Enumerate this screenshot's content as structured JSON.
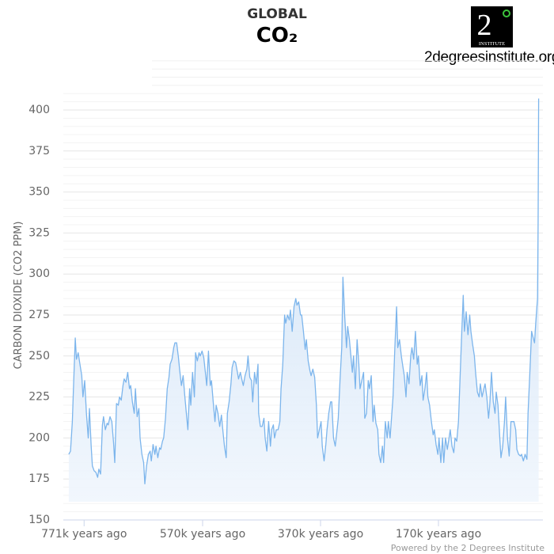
{
  "title": "GLOBAL",
  "subtitle": "CO₂",
  "logo": {
    "text": "2°",
    "caption": "INSTITUTE",
    "colors": {
      "background": "#000000",
      "ring": "#3cc43c"
    }
  },
  "site": "2degreesinstitute.org",
  "credits": "Powered by the 2 Degrees Institute",
  "chart_data": {
    "type": "area",
    "title": "GLOBAL CO₂",
    "xlabel": "",
    "ylabel": "CARBON DIOXIDE (CO2 PPM)",
    "x_unit": "thousand years ago",
    "xlim": [
      797,
      0
    ],
    "ylim": [
      150,
      410
    ],
    "y_ticks": [
      150,
      175,
      200,
      225,
      250,
      275,
      300,
      325,
      350,
      375,
      400
    ],
    "x_ticks": [
      {
        "value": 771,
        "label": "771k years ago"
      },
      {
        "value": 570,
        "label": "570k years ago"
      },
      {
        "value": 370,
        "label": "370k years ago"
      },
      {
        "value": 170,
        "label": "170k years ago"
      }
    ],
    "grid": true,
    "legend": "none",
    "colors": {
      "line": "#7cb5ec",
      "fill_top": "#c9def5",
      "fill_bottom": "#f0f6fd",
      "grid": "#e6e6e6"
    },
    "years_ago_k": [
      797,
      794,
      791,
      789,
      786,
      784,
      781,
      778,
      775,
      773,
      770,
      767,
      764,
      762,
      759,
      757,
      754,
      751,
      748,
      746,
      743,
      740,
      738,
      735,
      732,
      730,
      727,
      724,
      721,
      719,
      716,
      713,
      711,
      708,
      705,
      703,
      700,
      697,
      694,
      692,
      689,
      686,
      684,
      681,
      678,
      676,
      673,
      670,
      668,
      665,
      662,
      659,
      657,
      654,
      651,
      649,
      646,
      643,
      641,
      638,
      636,
      633,
      630,
      627,
      625,
      622,
      619,
      617,
      614,
      611,
      609,
      606,
      603,
      600,
      598,
      595,
      592,
      590,
      587,
      584,
      582,
      579,
      576,
      574,
      571,
      568,
      565,
      563,
      560,
      557,
      555,
      552,
      549,
      547,
      544,
      541,
      538,
      536,
      533,
      530,
      528,
      525,
      522,
      520,
      517,
      514,
      511,
      509,
      506,
      503,
      501,
      498,
      495,
      493,
      490,
      487,
      485,
      482,
      479,
      476,
      475,
      472,
      469,
      466,
      464,
      461,
      458,
      455,
      453,
      450,
      448,
      445,
      442,
      439,
      437,
      434,
      431,
      429,
      426,
      423,
      421,
      418,
      415,
      412,
      410,
      407,
      404,
      402,
      399,
      396,
      394,
      391,
      388,
      386,
      383,
      380,
      377,
      375,
      372,
      369,
      367,
      364,
      361,
      359,
      356,
      353,
      351,
      348,
      345,
      342,
      340,
      337,
      334,
      332,
      329,
      326,
      324,
      321,
      318,
      316,
      314,
      311,
      308,
      305,
      303,
      300,
      297,
      295,
      292,
      289,
      287,
      284,
      281,
      279,
      276,
      273,
      271,
      268,
      265,
      263,
      260,
      257,
      255,
      252,
      249,
      247,
      244,
      241,
      239,
      236,
      233,
      231,
      228,
      225,
      223,
      220,
      217,
      215,
      212,
      209,
      206,
      204,
      201,
      198,
      196,
      193,
      190,
      188,
      185,
      182,
      179,
      177,
      174,
      171,
      169,
      166,
      163,
      161,
      158,
      155,
      152,
      150,
      147,
      144,
      142,
      139,
      136,
      134,
      131,
      128,
      126,
      123,
      120,
      117,
      115,
      112,
      109,
      107,
      104,
      101,
      99,
      96,
      93,
      91,
      88,
      85,
      83,
      80,
      77,
      74,
      72,
      69,
      66,
      64,
      61,
      58,
      56,
      53,
      50,
      47,
      45,
      42,
      39,
      37,
      34,
      31,
      29,
      26,
      23,
      20,
      18,
      15,
      12,
      10,
      7,
      5,
      3,
      2,
      1,
      0
    ],
    "co2_ppm": [
      190,
      192,
      210,
      230,
      261,
      248,
      252,
      245,
      238,
      225,
      235,
      215,
      200,
      218,
      195,
      183,
      180,
      179,
      176,
      181,
      178,
      208,
      213,
      205,
      209,
      208,
      213,
      210,
      197,
      185,
      221,
      220,
      225,
      223,
      232,
      236,
      234,
      240,
      230,
      232,
      222,
      215,
      230,
      213,
      218,
      200,
      190,
      185,
      172,
      183,
      190,
      192,
      186,
      196,
      190,
      195,
      188,
      194,
      193,
      198,
      200,
      212,
      230,
      237,
      245,
      248,
      255,
      258,
      258,
      249,
      242,
      232,
      238,
      225,
      217,
      205,
      230,
      220,
      240,
      225,
      252,
      247,
      252,
      250,
      253,
      249,
      239,
      232,
      253,
      232,
      235,
      222,
      210,
      220,
      215,
      207,
      214,
      206,
      195,
      188,
      215,
      222,
      233,
      243,
      247,
      246,
      240,
      236,
      240,
      235,
      232,
      238,
      242,
      250,
      237,
      235,
      222,
      240,
      233,
      245,
      215,
      207,
      207,
      212,
      200,
      192,
      210,
      195,
      205,
      208,
      200,
      205,
      205,
      210,
      230,
      245,
      275,
      270,
      275,
      272,
      278,
      265,
      280,
      285,
      281,
      283,
      275,
      275,
      265,
      254,
      260,
      247,
      241,
      238,
      242,
      237,
      220,
      200,
      205,
      210,
      195,
      186,
      196,
      205,
      215,
      222,
      222,
      200,
      195,
      205,
      212,
      235,
      255,
      298,
      275,
      255,
      268,
      260,
      248,
      240,
      250,
      230,
      260,
      245,
      230,
      235,
      240,
      212,
      215,
      235,
      230,
      238,
      210,
      220,
      209,
      205,
      190,
      185,
      195,
      185,
      210,
      200,
      210,
      200,
      215,
      225,
      255,
      280,
      255,
      260,
      250,
      245,
      238,
      225,
      240,
      233,
      250,
      255,
      248,
      265,
      245,
      250,
      232,
      238,
      223,
      230,
      240,
      225,
      220,
      210,
      202,
      205,
      196,
      190,
      200,
      185,
      200,
      185,
      200,
      193,
      200,
      205,
      195,
      191,
      200,
      198,
      210,
      230,
      260,
      287,
      265,
      277,
      263,
      275,
      265,
      257,
      250,
      240,
      228,
      225,
      233,
      225,
      230,
      233,
      225,
      212,
      220,
      240,
      222,
      215,
      228,
      220,
      200,
      188,
      195,
      210,
      225,
      200,
      189,
      210,
      210,
      210,
      205,
      193,
      190,
      189,
      190,
      186,
      190,
      187,
      215,
      240,
      265,
      262,
      258,
      270,
      280,
      285,
      330,
      407
    ]
  }
}
